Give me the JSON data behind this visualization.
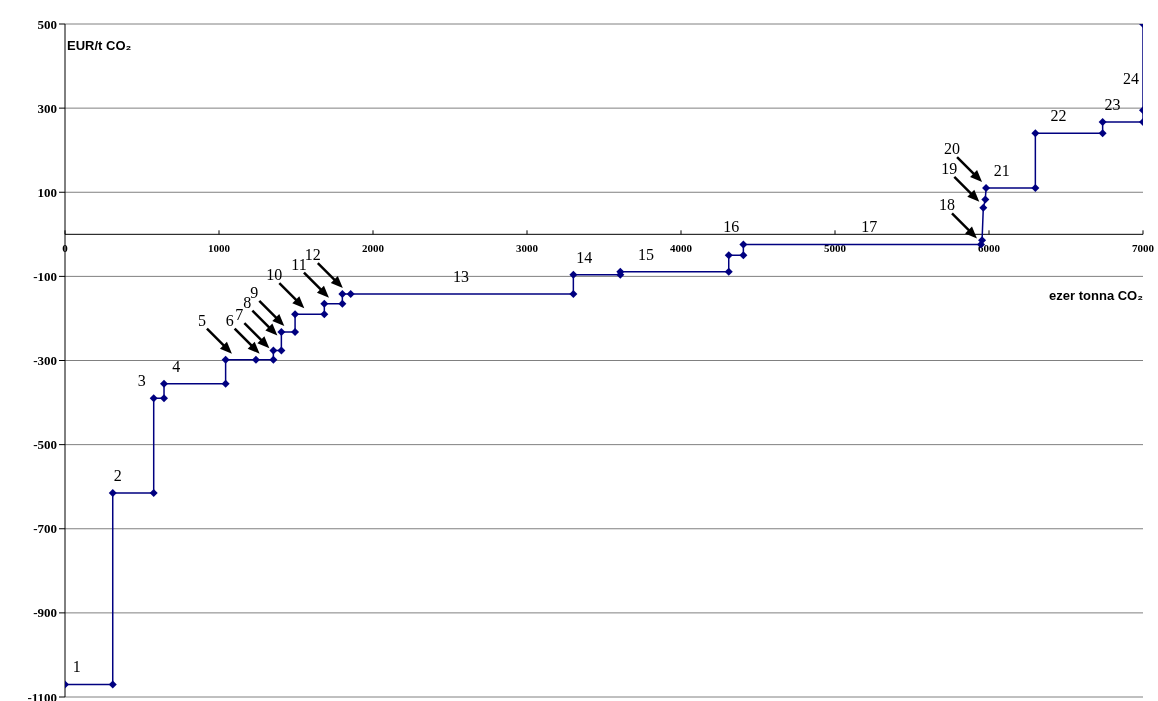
{
  "chart_data": {
    "type": "line",
    "xlabel": "ezer tonna CO₂",
    "ylabel": "EUR/t CO₂",
    "x": [
      0,
      310,
      310,
      576,
      576,
      643,
      643,
      1043,
      1043,
      1240,
      1353,
      1353,
      1405,
      1405,
      1494,
      1494,
      1684,
      1684,
      1801,
      1801,
      1855,
      3301,
      3301,
      3606,
      3606,
      4310,
      4310,
      4405,
      4405,
      5948,
      5955,
      5963,
      5976,
      5981,
      6301,
      6301,
      6738,
      6738,
      7000,
      7000,
      7000
    ],
    "series": [
      {
        "color": "#000080",
        "values": [
          -1070,
          -1070,
          -615,
          -615,
          -390,
          -390,
          -355,
          -355,
          -298,
          -298,
          -298,
          -276,
          -276,
          -232,
          -232,
          -190,
          -190,
          -165,
          -165,
          -142,
          -142,
          -142,
          -96,
          -96,
          -89,
          -89,
          -50,
          -50,
          -24,
          -24,
          -14,
          63,
          83,
          110,
          110,
          240,
          240,
          267,
          267,
          295,
          500
        ]
      }
    ],
    "xlim": [
      0,
      7000
    ],
    "xticks": [
      0,
      1000,
      2000,
      3000,
      4000,
      5000,
      6000,
      7000
    ],
    "ylim": [
      -1100,
      500
    ],
    "yticks": [
      -1100,
      -900,
      -700,
      -500,
      -300,
      -100,
      100,
      300,
      500
    ],
    "grid": "y",
    "marker": "diamond",
    "line_style": "solid",
    "annotations": [
      {
        "text": "1",
        "x": 155,
        "y": -1070
      },
      {
        "text": "2",
        "x": 420,
        "y": -615
      },
      {
        "text": "3",
        "x": 576,
        "y": -390
      },
      {
        "text": "4",
        "x": 800,
        "y": -355
      },
      {
        "text": "5",
        "x": 1110,
        "y": -298
      },
      {
        "text": "6",
        "x": 1290,
        "y": -298
      },
      {
        "text": "7",
        "x": 1353,
        "y": -285
      },
      {
        "text": "8",
        "x": 1405,
        "y": -255
      },
      {
        "text": "9",
        "x": 1450,
        "y": -232
      },
      {
        "text": "10",
        "x": 1580,
        "y": -190
      },
      {
        "text": "11",
        "x": 1740,
        "y": -165
      },
      {
        "text": "12",
        "x": 1830,
        "y": -142
      },
      {
        "text": "13",
        "x": 2650,
        "y": -142
      },
      {
        "text": "14",
        "x": 3450,
        "y": -96
      },
      {
        "text": "15",
        "x": 3850,
        "y": -89
      },
      {
        "text": "16",
        "x": 4405,
        "y": -24
      },
      {
        "text": "17",
        "x": 5300,
        "y": -24
      },
      {
        "text": "18",
        "x": 5948,
        "y": -24
      },
      {
        "text": "19",
        "x": 5963,
        "y": 63
      },
      {
        "text": "20",
        "x": 5981,
        "y": 110
      },
      {
        "text": "21",
        "x": 6160,
        "y": 110
      },
      {
        "text": "22",
        "x": 6530,
        "y": 240
      },
      {
        "text": "23",
        "x": 6880,
        "y": 267
      },
      {
        "text": "24",
        "x": 7000,
        "y": 330
      }
    ]
  }
}
